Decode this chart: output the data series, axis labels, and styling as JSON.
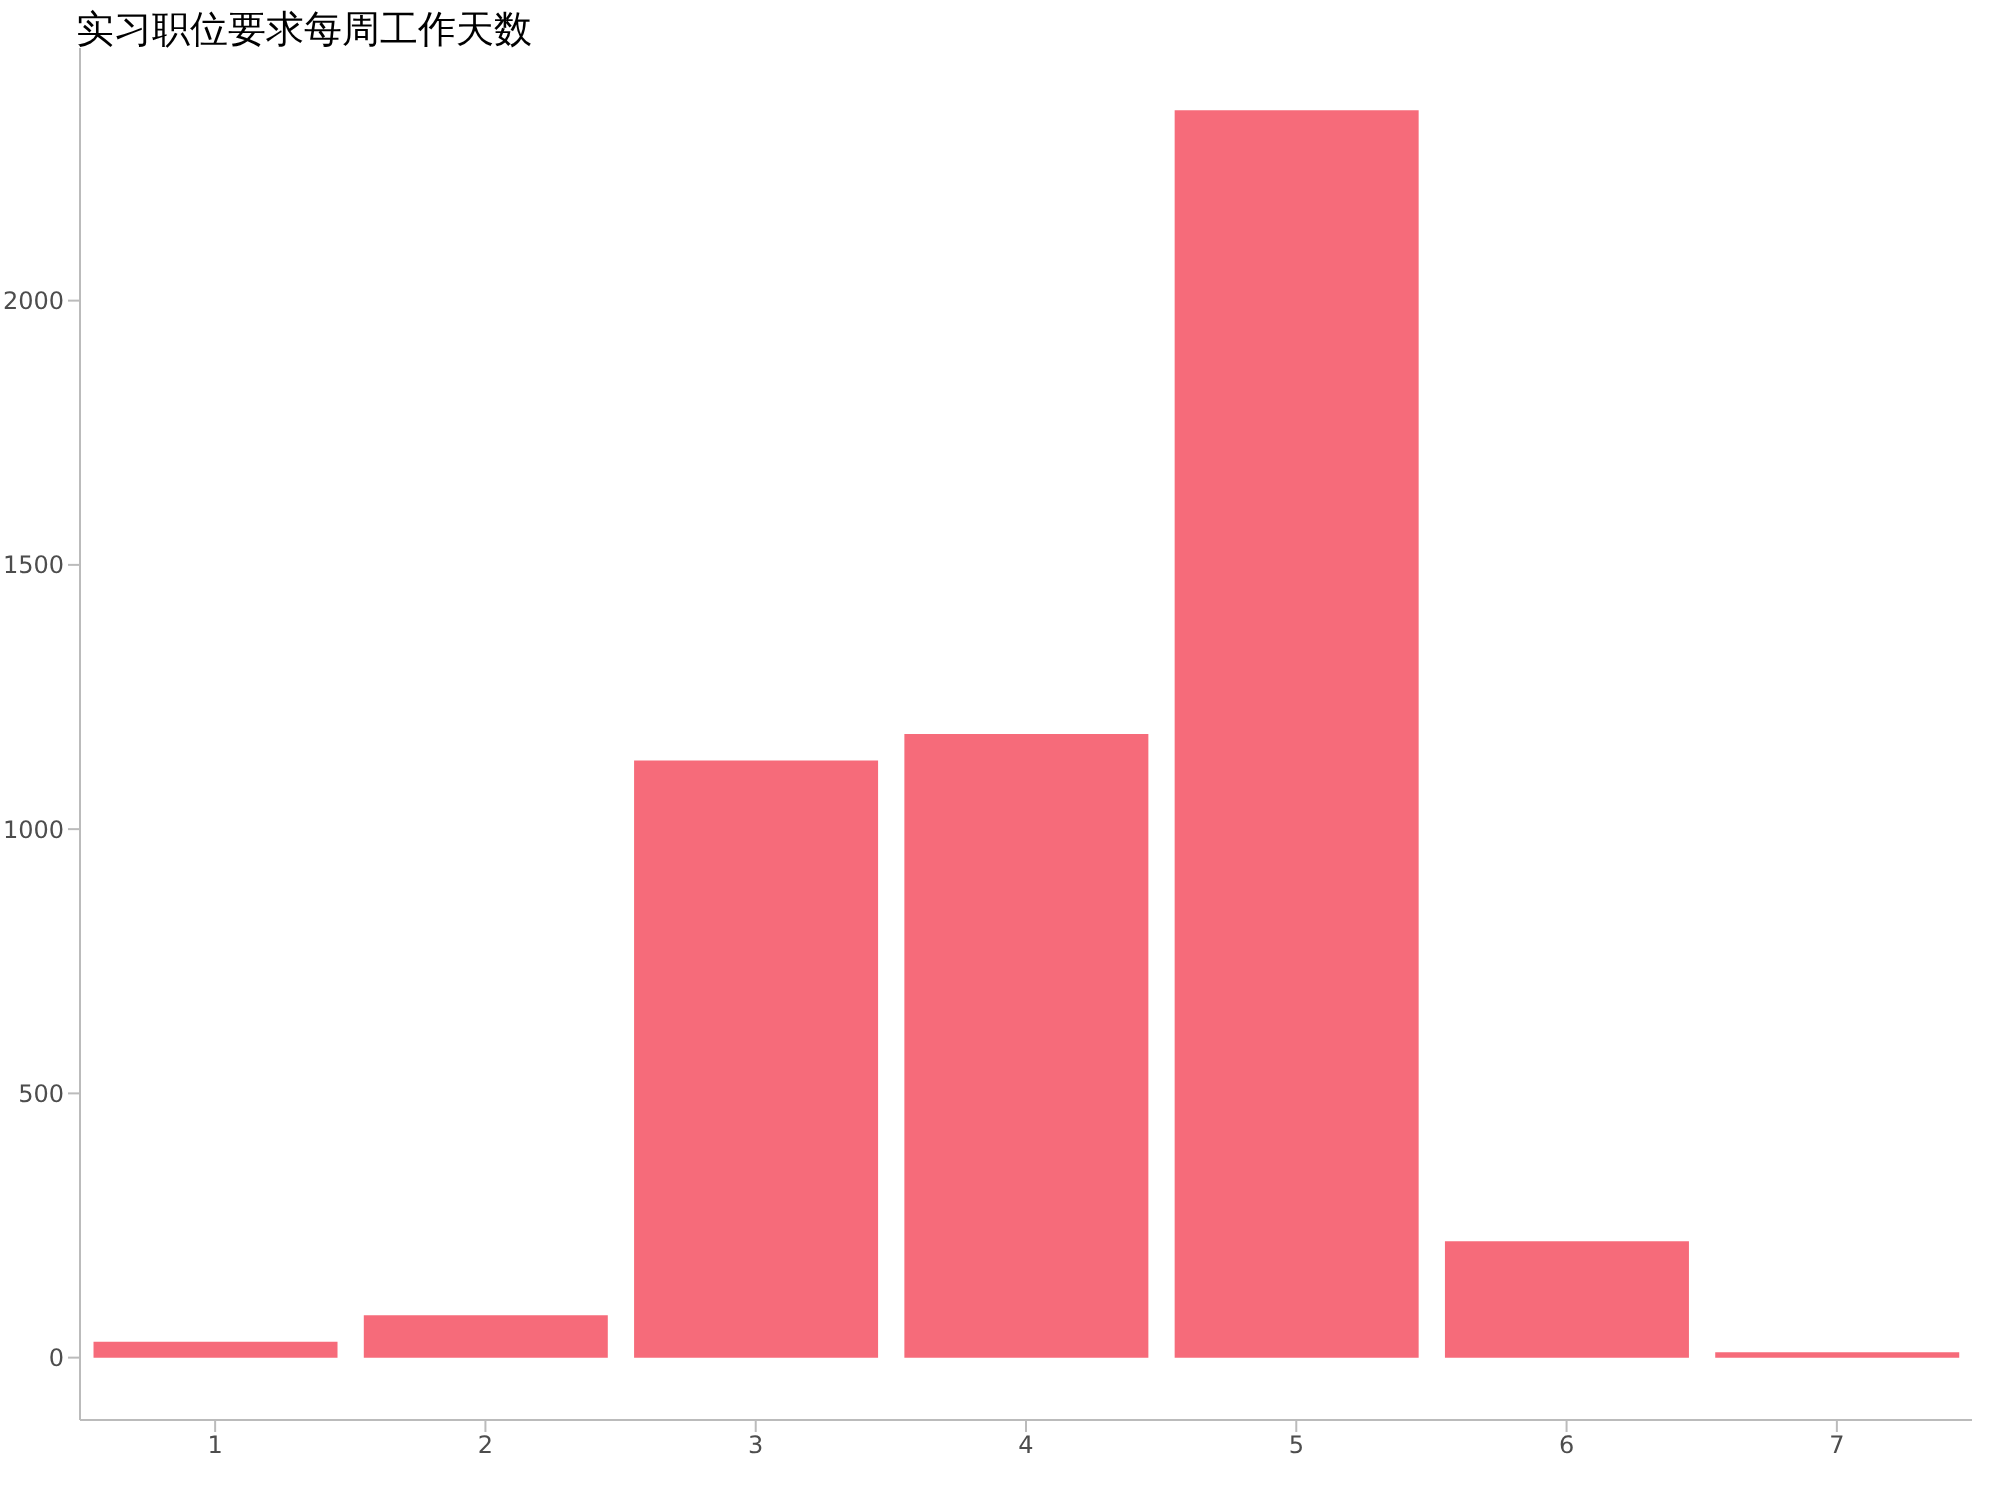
{
  "chart_data": {
    "type": "bar",
    "title": "实习职位要求每周工作天数",
    "categories": [
      "1",
      "2",
      "3",
      "4",
      "5",
      "6",
      "7"
    ],
    "values": [
      30,
      80,
      1130,
      1180,
      2360,
      220,
      10
    ],
    "color": "#f66b7a",
    "ylim": [
      -118,
      2478
    ],
    "yticks": [
      0,
      500,
      1000,
      1500,
      2000
    ],
    "grid": false,
    "legend": false
  }
}
